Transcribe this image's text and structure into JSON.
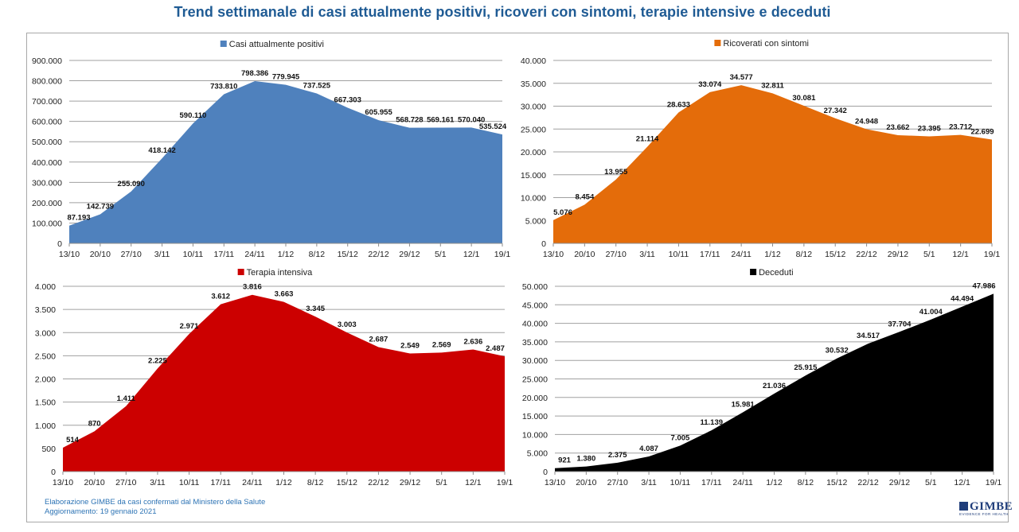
{
  "title": "Trend settimanale di casi attualmente positivi, ricoveri con sintomi, terapie intensive e deceduti",
  "footer": {
    "line1": "Elaborazione GIMBE da casi confermati dal Ministero della Salute",
    "line2": "Aggiornamento: 19 gennaio 2021"
  },
  "logo": {
    "name": "GIMBE",
    "tagline": "EVIDENCE FOR HEALTH"
  },
  "chart_data": [
    {
      "type": "area",
      "title": "",
      "legend": "Casi attualmente positivi",
      "legend_position": "top-center",
      "color": "#4f81bd",
      "xlabel": "",
      "ylabel": "",
      "categories": [
        "13/10",
        "20/10",
        "27/10",
        "3/11",
        "10/11",
        "17/11",
        "24/11",
        "1/12",
        "8/12",
        "15/12",
        "22/12",
        "29/12",
        "5/1",
        "12/1",
        "19/1"
      ],
      "values": [
        87193,
        142739,
        255090,
        418142,
        590110,
        733810,
        798386,
        779945,
        737525,
        667303,
        605955,
        568728,
        569161,
        570040,
        535524
      ],
      "data_labels": [
        "87.193",
        "142.739",
        "255.090",
        "418.142",
        "590.110",
        "733.810",
        "798.386",
        "779.945",
        "737.525",
        "667.303",
        "605.955",
        "568.728",
        "569.161",
        "570.040",
        "535.524"
      ],
      "ylim": [
        0,
        900000
      ],
      "yticks": [
        0,
        100000,
        200000,
        300000,
        400000,
        500000,
        600000,
        700000,
        800000,
        900000
      ],
      "ytick_labels": [
        "0",
        "100.000",
        "200.000",
        "300.000",
        "400.000",
        "500.000",
        "600.000",
        "700.000",
        "800.000",
        "900.000"
      ],
      "grid": true
    },
    {
      "type": "area",
      "title": "",
      "legend": "Ricoverati con sintomi",
      "legend_position": "top-center",
      "color": "#e46c0a",
      "xlabel": "",
      "ylabel": "",
      "categories": [
        "13/10",
        "20/10",
        "27/10",
        "3/11",
        "10/11",
        "17/11",
        "24/11",
        "1/12",
        "8/12",
        "15/12",
        "22/12",
        "29/12",
        "5/1",
        "12/1",
        "19/1"
      ],
      "values": [
        5076,
        8454,
        13955,
        21114,
        28633,
        33074,
        34577,
        32811,
        30081,
        27342,
        24948,
        23662,
        23395,
        23712,
        22699
      ],
      "data_labels": [
        "5.076",
        "8.454",
        "13.955",
        "21.114",
        "28.633",
        "33.074",
        "34.577",
        "32.811",
        "30.081",
        "27.342",
        "24.948",
        "23.662",
        "23.395",
        "23.712",
        "22.699"
      ],
      "ylim": [
        0,
        40000
      ],
      "yticks": [
        0,
        5000,
        10000,
        15000,
        20000,
        25000,
        30000,
        35000,
        40000
      ],
      "ytick_labels": [
        "0",
        "5.000",
        "10.000",
        "15.000",
        "20.000",
        "25.000",
        "30.000",
        "35.000",
        "40.000"
      ],
      "grid": true
    },
    {
      "type": "area",
      "title": "",
      "legend": "Terapia intensiva",
      "legend_position": "top-center",
      "color": "#cc0000",
      "xlabel": "",
      "ylabel": "",
      "categories": [
        "13/10",
        "20/10",
        "27/10",
        "3/11",
        "10/11",
        "17/11",
        "24/11",
        "1/12",
        "8/12",
        "15/12",
        "22/12",
        "29/12",
        "5/1",
        "12/1",
        "19/1"
      ],
      "values": [
        514,
        870,
        1411,
        2225,
        2971,
        3612,
        3816,
        3663,
        3345,
        3003,
        2687,
        2549,
        2569,
        2636,
        2487
      ],
      "data_labels": [
        "514",
        "870",
        "1.411",
        "2.225",
        "2.971",
        "3.612",
        "3.816",
        "3.663",
        "3.345",
        "3.003",
        "2.687",
        "2.549",
        "2.569",
        "2.636",
        "2.487"
      ],
      "ylim": [
        0,
        4000
      ],
      "yticks": [
        0,
        500,
        1000,
        1500,
        2000,
        2500,
        3000,
        3500,
        4000
      ],
      "ytick_labels": [
        "0",
        "500",
        "1.000",
        "1.500",
        "2.000",
        "2.500",
        "3.000",
        "3.500",
        "4.000"
      ],
      "grid": true
    },
    {
      "type": "area",
      "title": "",
      "legend": "Deceduti",
      "legend_position": "top-center",
      "color": "#000000",
      "xlabel": "",
      "ylabel": "",
      "categories": [
        "13/10",
        "20/10",
        "27/10",
        "3/11",
        "10/11",
        "17/11",
        "24/11",
        "1/12",
        "8/12",
        "15/12",
        "22/12",
        "29/12",
        "5/1",
        "12/1",
        "19/1"
      ],
      "values": [
        921,
        1380,
        2375,
        4087,
        7005,
        11139,
        15981,
        21036,
        25915,
        30532,
        34517,
        37704,
        41004,
        44494,
        47986
      ],
      "data_labels": [
        "921",
        "1.380",
        "2.375",
        "4.087",
        "7.005",
        "11.139",
        "15.981",
        "21.036",
        "25.915",
        "30.532",
        "34.517",
        "37.704",
        "41.004",
        "44.494",
        "47.986"
      ],
      "ylim": [
        0,
        50000
      ],
      "yticks": [
        0,
        5000,
        10000,
        15000,
        20000,
        25000,
        30000,
        35000,
        40000,
        45000,
        50000
      ],
      "ytick_labels": [
        "0",
        "5.000",
        "10.000",
        "15.000",
        "20.000",
        "25.000",
        "30.000",
        "35.000",
        "40.000",
        "45.000",
        "50.000"
      ],
      "grid": true
    }
  ]
}
